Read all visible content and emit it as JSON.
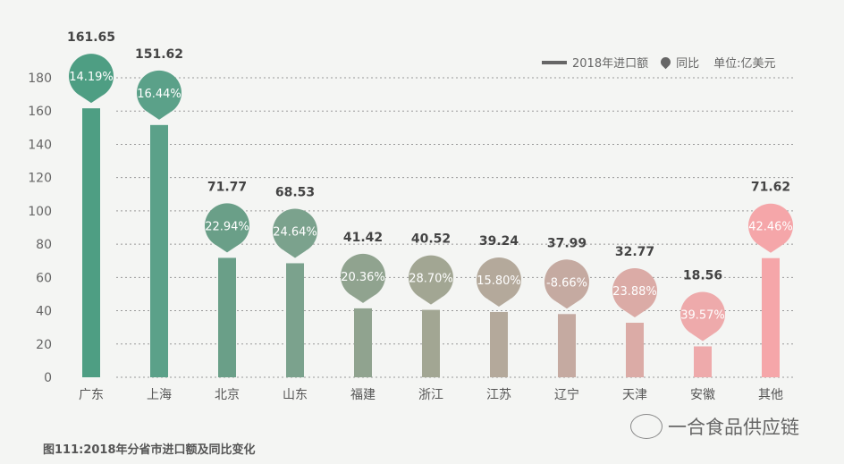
{
  "chart_data": {
    "type": "bar",
    "categories": [
      "广东",
      "上海",
      "北京",
      "山东",
      "福建",
      "浙江",
      "江苏",
      "辽宁",
      "天津",
      "安徽",
      "其他"
    ],
    "series": [
      {
        "name": "2018年进口额",
        "values": [
          161.65,
          151.62,
          71.77,
          68.53,
          41.42,
          40.52,
          39.24,
          37.99,
          32.77,
          18.56,
          71.62
        ]
      },
      {
        "name": "同比",
        "values": [
          "14.19%",
          "16.44%",
          "22.94%",
          "24.64%",
          "20.36%",
          "28.70%",
          "15.80%",
          "-8.66%",
          "23.88%",
          "39.57%",
          "42.46%"
        ]
      }
    ],
    "value_labels": [
      "161.65",
      "151.62",
      "71.77",
      "68.53",
      "41.42",
      "40.52",
      "39.24",
      "37.99",
      "32.77",
      "18.56",
      "71.62"
    ],
    "colors": [
      "#4e9e83",
      "#5ba189",
      "#6a9f88",
      "#7ba28d",
      "#90a38f",
      "#a2a693",
      "#b4a99b",
      "#c5aaa1",
      "#dbaba6",
      "#eeaaab",
      "#f5a6a9"
    ],
    "yticks": [
      "0",
      "20",
      "40",
      "60",
      "80",
      "100",
      "120",
      "140",
      "160",
      "180"
    ],
    "ylim": [
      0,
      180
    ],
    "grid": true,
    "legend_position": "top-right",
    "unit": "单位:亿美元"
  },
  "legend": {
    "bar": "2018年进口额",
    "pin": "同比",
    "unit": "单位:亿美元"
  },
  "caption": "图111:2018年分省市进口额及同比变化",
  "brand": "一合食品供应链"
}
